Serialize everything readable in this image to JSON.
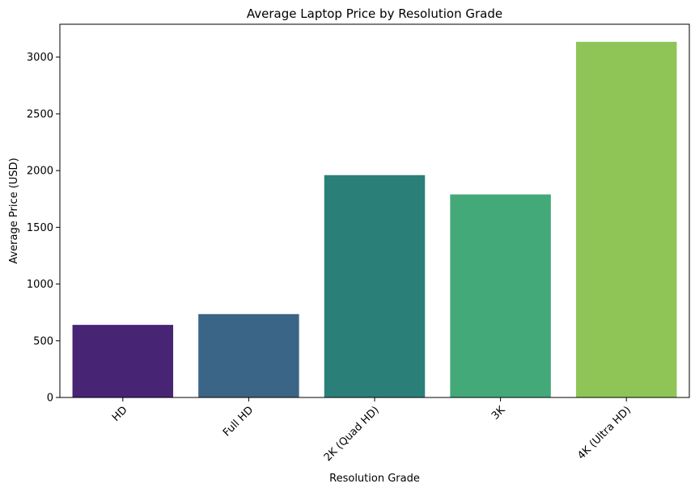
{
  "chart_data": {
    "type": "bar",
    "title": "Average Laptop Price by Resolution Grade",
    "xlabel": "Resolution Grade",
    "ylabel": "Average Price (USD)",
    "categories": [
      "HD",
      "Full HD",
      "2K (Quad HD)",
      "3K",
      "4K (Ultra HD)"
    ],
    "values": [
      640,
      735,
      1960,
      1790,
      3135
    ],
    "colors": [
      "#482475",
      "#3b6586",
      "#2a8079",
      "#44a978",
      "#8fc557"
    ],
    "ylim": [
      0,
      3290
    ],
    "yticks": [
      0,
      500,
      1000,
      1500,
      2000,
      2500,
      3000
    ],
    "xtick_rotation": 45,
    "grid": false,
    "legend": "none"
  }
}
